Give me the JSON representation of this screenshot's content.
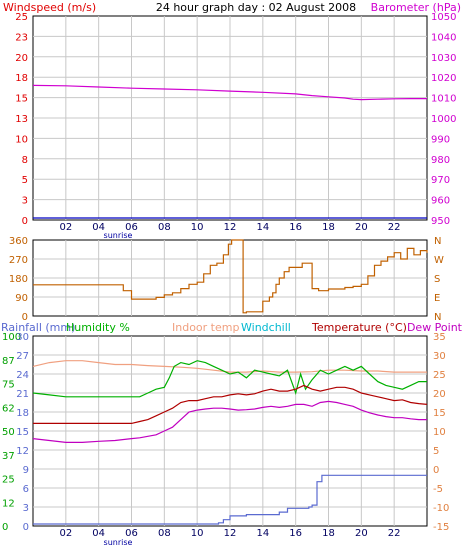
{
  "header": {
    "title": "24 hour graph day : 02 August 2008",
    "left_label": "Windspeed (m/s)",
    "right_label": "Barometer (hPa)"
  },
  "colors": {
    "windspeed": "#0000c0",
    "barometer": "#d000d0",
    "winddir": "#c06000",
    "rainfall": "#5a6ad0",
    "humidity": "#00b000",
    "indoor": "#f0a080",
    "windchill": "#00b8d0",
    "temperature": "#b00000",
    "dewpoint": "#c000c0",
    "grid": "#c8c8c8",
    "axis_text_left_top": "#e00000",
    "axis_text_right_top": "#d000d0",
    "axis_text_bottom_left": "#00a000",
    "axis_text_bottom_right": "#e08040"
  },
  "labels": {
    "sunrise": "sunrise",
    "rainfall": "Rainfall (mm)",
    "humidity": "Humidity %",
    "indoor": "Indoor temp",
    "windchill": "Windchill",
    "temperature": "Temperature (°C)",
    "dewpoint": "Dew Point"
  },
  "x_ticks": [
    "02",
    "04",
    "06",
    "08",
    "10",
    "12",
    "14",
    "16",
    "18",
    "20",
    "22"
  ],
  "chart_data": [
    {
      "type": "line",
      "title": "24 hour graph day : 02 August 2008",
      "ylabel": "Windspeed (m/s)",
      "y2label": "Barometer (hPa)",
      "ylim": [
        0,
        25
      ],
      "y2lim": [
        950,
        1050
      ],
      "y_ticks": [
        "25",
        "23",
        "20",
        "18",
        "15",
        "13",
        "10",
        "8",
        "5",
        "3",
        "0"
      ],
      "y2_ticks": [
        "1050",
        "1040",
        "1030",
        "1020",
        "1010",
        "1000",
        "990",
        "980",
        "970",
        "960",
        "950"
      ],
      "series": [
        {
          "name": "Windspeed (m/s)",
          "axis": "left",
          "x": [
            0,
            24
          ],
          "values": [
            0,
            0
          ]
        },
        {
          "name": "Barometer (hPa)",
          "axis": "right",
          "x": [
            0,
            2,
            4,
            6,
            8,
            10,
            12,
            14,
            16,
            17,
            18,
            19,
            19.5,
            20,
            21,
            22,
            23,
            24
          ],
          "values": [
            1016,
            1015.8,
            1015.2,
            1014.6,
            1014.2,
            1013.8,
            1013.2,
            1012.6,
            1011.8,
            1011,
            1010.4,
            1009.8,
            1009.2,
            1009,
            1009.2,
            1009.4,
            1009.5,
            1009.5
          ]
        }
      ]
    },
    {
      "type": "line",
      "ylim": [
        0,
        360
      ],
      "y_ticks": [
        "360",
        "270",
        "180",
        "90",
        "0"
      ],
      "y2_ticks": [
        "N",
        "W",
        "S",
        "E",
        "N"
      ],
      "series": [
        {
          "name": "Wind direction",
          "x": [
            0,
            1,
            2,
            3,
            4,
            5,
            5.5,
            6,
            6.5,
            7,
            7.5,
            8,
            8.5,
            9,
            9.5,
            10,
            10.4,
            10.8,
            11.2,
            11.6,
            11.9,
            12.1,
            12.5,
            12.8,
            13,
            13.5,
            14,
            14.4,
            14.6,
            14.8,
            15,
            15.3,
            15.6,
            16,
            16.4,
            16.7,
            17,
            17.4,
            17.7,
            18,
            18.5,
            19,
            19.5,
            20,
            20.4,
            20.8,
            21.2,
            21.6,
            22,
            22.4,
            22.8,
            23.2,
            23.6,
            24
          ],
          "values": [
            148,
            148,
            148,
            148,
            148,
            148,
            120,
            80,
            80,
            80,
            88,
            100,
            110,
            130,
            150,
            160,
            200,
            240,
            250,
            290,
            340,
            360,
            360,
            15,
            20,
            20,
            70,
            90,
            110,
            150,
            180,
            210,
            230,
            230,
            250,
            250,
            130,
            120,
            120,
            128,
            128,
            135,
            140,
            150,
            190,
            240,
            260,
            280,
            300,
            270,
            320,
            290,
            310,
            300
          ]
        }
      ]
    },
    {
      "type": "line",
      "y_left_ticks": [
        "100",
        "87",
        "75",
        "62",
        "50",
        "37",
        "25",
        "12",
        "0"
      ],
      "y_left2_ticks": [
        "30",
        "27",
        "24",
        "21",
        "18",
        "15",
        "12",
        "9",
        "6",
        "3",
        "0"
      ],
      "y_right_ticks": [
        "35",
        "30",
        "25",
        "20",
        "15",
        "10",
        "5",
        "0",
        "-5",
        "-10",
        "-15"
      ],
      "ylim_humidity": [
        0,
        100
      ],
      "ylim_rainfall": [
        0,
        30
      ],
      "ylim_temperature": [
        -15,
        35
      ],
      "series": [
        {
          "name": "Rainfall (mm)",
          "axis": "rainfall",
          "x": [
            0,
            2,
            4,
            6,
            8,
            10,
            11,
            11.3,
            11.6,
            12,
            13,
            15,
            15.5,
            16,
            16.8,
            17,
            17.3,
            17.6,
            18,
            20,
            22,
            24
          ],
          "values": [
            0,
            0,
            0,
            0,
            0,
            0,
            0,
            0.5,
            1,
            1.6,
            1.8,
            2.2,
            2.8,
            2.8,
            3,
            3.3,
            7,
            8,
            8,
            8,
            8,
            8
          ]
        },
        {
          "name": "Humidity %",
          "axis": "humidity",
          "x": [
            0,
            1,
            2,
            3,
            4,
            5,
            6,
            6.5,
            7,
            7.5,
            8,
            8.3,
            8.6,
            9,
            9.5,
            10,
            10.5,
            11,
            11.5,
            12,
            12.5,
            13,
            13.5,
            14,
            14.5,
            15,
            15.5,
            16,
            16.3,
            16.6,
            17,
            17.5,
            18,
            18.5,
            19,
            19.5,
            20,
            20.5,
            21,
            21.5,
            22,
            22.5,
            23,
            23.5,
            24
          ],
          "values": [
            70,
            69,
            68,
            68,
            68,
            68,
            68,
            68,
            70,
            72,
            73,
            78,
            84,
            86,
            85,
            87,
            86,
            84,
            82,
            80,
            81,
            78,
            82,
            81,
            80,
            79,
            82,
            70,
            80,
            72,
            77,
            82,
            80,
            82,
            84,
            82,
            84,
            80,
            76,
            74,
            73,
            72,
            74,
            76,
            76
          ]
        },
        {
          "name": "Indoor temp",
          "axis": "temperature",
          "x": [
            0,
            1,
            2,
            3,
            4,
            5,
            6,
            7,
            8,
            9,
            10,
            11,
            12,
            13,
            14,
            15,
            16,
            17,
            18,
            19,
            20,
            21,
            22,
            23,
            24
          ],
          "values": [
            27,
            28,
            28.5,
            28.5,
            28,
            27.5,
            27.5,
            27.2,
            27,
            26.8,
            26.5,
            26,
            25.5,
            25.5,
            25.8,
            25.5,
            25.5,
            25.6,
            26,
            26,
            25.8,
            25.8,
            25.5,
            25.5,
            25.5
          ]
        },
        {
          "name": "Windchill",
          "axis": "temperature",
          "x": [],
          "values": []
        },
        {
          "name": "Temperature (°C)",
          "axis": "temperature",
          "x": [
            0,
            1,
            2,
            3,
            4,
            5,
            6,
            6.5,
            7,
            7.5,
            8,
            8.5,
            9,
            9.5,
            10,
            10.5,
            11,
            11.5,
            12,
            12.5,
            13,
            13.5,
            14,
            14.5,
            15,
            15.5,
            16,
            16.5,
            17,
            17.5,
            18,
            18.5,
            19,
            19.5,
            20,
            20.5,
            21,
            21.5,
            22,
            22.5,
            23,
            23.5,
            24
          ],
          "values": [
            12,
            12,
            12,
            12,
            12,
            12,
            12,
            12.5,
            13,
            14,
            15,
            16,
            17.5,
            18,
            18,
            18.5,
            19,
            19,
            19.5,
            19.8,
            19.5,
            19.8,
            20.5,
            21,
            20.5,
            20.5,
            21,
            22,
            21,
            20.5,
            21,
            21.5,
            21.5,
            21,
            20,
            19.5,
            19,
            18.5,
            18,
            18.2,
            17.5,
            17.2,
            17
          ]
        },
        {
          "name": "Dew Point",
          "axis": "temperature",
          "x": [
            0,
            1,
            2,
            3,
            4,
            5,
            6,
            6.5,
            7,
            7.5,
            8,
            8.5,
            9,
            9.5,
            10,
            10.5,
            11,
            11.5,
            12,
            12.5,
            13,
            13.5,
            14,
            14.5,
            15,
            15.5,
            16,
            16.5,
            17,
            17.5,
            18,
            18.5,
            19,
            19.5,
            20,
            20.5,
            21,
            21.5,
            22,
            22.5,
            23,
            23.5,
            24
          ],
          "values": [
            8,
            7.5,
            7,
            7,
            7.3,
            7.5,
            8,
            8.2,
            8.6,
            9,
            10,
            11,
            13,
            15,
            15.5,
            15.8,
            16,
            16,
            15.8,
            15.5,
            15.6,
            15.8,
            16.2,
            16.5,
            16.2,
            16.5,
            17,
            17,
            16.5,
            17.5,
            17.8,
            17.5,
            17,
            16.5,
            15.5,
            14.8,
            14.2,
            13.8,
            13.5,
            13.5,
            13.2,
            13,
            13
          ]
        }
      ]
    }
  ]
}
